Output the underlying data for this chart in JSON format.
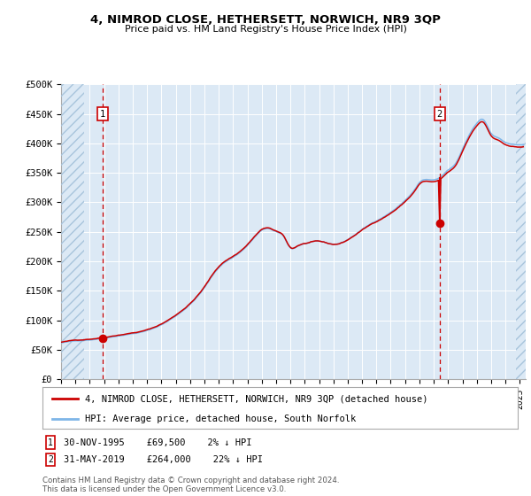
{
  "title": "4, NIMROD CLOSE, HETHERSETT, NORWICH, NR9 3QP",
  "subtitle": "Price paid vs. HM Land Registry's House Price Index (HPI)",
  "sale1_price": 69500,
  "sale1_note": "30-NOV-1995    £69,500    2% ↓ HPI",
  "sale2_price": 264000,
  "sale2_note": "31-MAY-2019    £264,000    22% ↓ HPI",
  "line1_label": "4, NIMROD CLOSE, HETHERSETT, NORWICH, NR9 3QP (detached house)",
  "line2_label": "HPI: Average price, detached house, South Norfolk",
  "hpi_color": "#7EB6E8",
  "price_color": "#CC0000",
  "dot_color": "#CC0000",
  "vline_color": "#CC0000",
  "background_color": "#DCE9F5",
  "hatch_color": "#A8C4DC",
  "grid_color": "#FFFFFF",
  "footer": "Contains HM Land Registry data © Crown copyright and database right 2024.\nThis data is licensed under the Open Government Licence v3.0.",
  "ylim": [
    0,
    500000
  ],
  "yticks": [
    0,
    50000,
    100000,
    150000,
    200000,
    250000,
    300000,
    350000,
    400000,
    450000,
    500000
  ],
  "ytick_labels": [
    "£0",
    "£50K",
    "£100K",
    "£150K",
    "£200K",
    "£250K",
    "£300K",
    "£350K",
    "£400K",
    "£450K",
    "£500K"
  ]
}
